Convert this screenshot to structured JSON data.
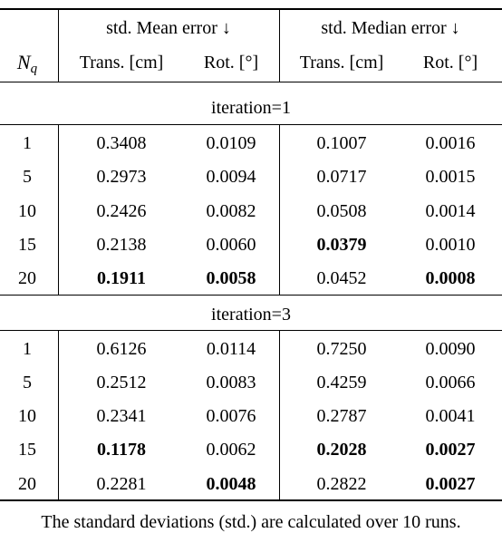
{
  "table": {
    "group_headers": {
      "mean": "std. Mean error ↓",
      "median": "std. Median error ↓"
    },
    "row_header": {
      "main": "N",
      "sub": "q"
    },
    "column_headers": [
      "Trans. [cm]",
      "Rot. [°]",
      "Trans. [cm]",
      "Rot. [°]"
    ],
    "sections": [
      {
        "label": "iteration=1",
        "rows": [
          {
            "nq": "1",
            "cells": [
              {
                "v": "0.3408",
                "b": false
              },
              {
                "v": "0.0109",
                "b": false
              },
              {
                "v": "0.1007",
                "b": false
              },
              {
                "v": "0.0016",
                "b": false
              }
            ]
          },
          {
            "nq": "5",
            "cells": [
              {
                "v": "0.2973",
                "b": false
              },
              {
                "v": "0.0094",
                "b": false
              },
              {
                "v": "0.0717",
                "b": false
              },
              {
                "v": "0.0015",
                "b": false
              }
            ]
          },
          {
            "nq": "10",
            "cells": [
              {
                "v": "0.2426",
                "b": false
              },
              {
                "v": "0.0082",
                "b": false
              },
              {
                "v": "0.0508",
                "b": false
              },
              {
                "v": "0.0014",
                "b": false
              }
            ]
          },
          {
            "nq": "15",
            "cells": [
              {
                "v": "0.2138",
                "b": false
              },
              {
                "v": "0.0060",
                "b": false
              },
              {
                "v": "0.0379",
                "b": true
              },
              {
                "v": "0.0010",
                "b": false
              }
            ]
          },
          {
            "nq": "20",
            "cells": [
              {
                "v": "0.1911",
                "b": true
              },
              {
                "v": "0.0058",
                "b": true
              },
              {
                "v": "0.0452",
                "b": false
              },
              {
                "v": "0.0008",
                "b": true
              }
            ]
          }
        ]
      },
      {
        "label": "iteration=3",
        "rows": [
          {
            "nq": "1",
            "cells": [
              {
                "v": "0.6126",
                "b": false
              },
              {
                "v": "0.0114",
                "b": false
              },
              {
                "v": "0.7250",
                "b": false
              },
              {
                "v": "0.0090",
                "b": false
              }
            ]
          },
          {
            "nq": "5",
            "cells": [
              {
                "v": "0.2512",
                "b": false
              },
              {
                "v": "0.0083",
                "b": false
              },
              {
                "v": "0.4259",
                "b": false
              },
              {
                "v": "0.0066",
                "b": false
              }
            ]
          },
          {
            "nq": "10",
            "cells": [
              {
                "v": "0.2341",
                "b": false
              },
              {
                "v": "0.0076",
                "b": false
              },
              {
                "v": "0.2787",
                "b": false
              },
              {
                "v": "0.0041",
                "b": false
              }
            ]
          },
          {
            "nq": "15",
            "cells": [
              {
                "v": "0.1178",
                "b": true
              },
              {
                "v": "0.0062",
                "b": false
              },
              {
                "v": "0.2028",
                "b": true
              },
              {
                "v": "0.0027",
                "b": true
              }
            ]
          },
          {
            "nq": "20",
            "cells": [
              {
                "v": "0.2281",
                "b": false
              },
              {
                "v": "0.0048",
                "b": true
              },
              {
                "v": "0.2822",
                "b": false
              },
              {
                "v": "0.0027",
                "b": true
              }
            ]
          }
        ]
      }
    ],
    "footnote": "The standard deviations (std.) are calculated over 10 runs."
  }
}
